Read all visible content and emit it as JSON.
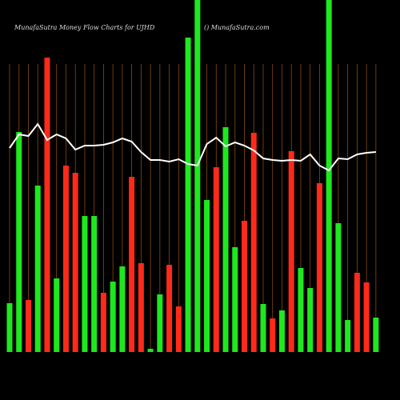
{
  "chart_data": {
    "type": "bar",
    "title": "MunafaSutra  Money Flow  Charts for UJHD",
    "subtitle": "() MunafaSutra.com",
    "ylim": [
      0,
      440
    ],
    "grid": true,
    "grid_color": "#8a4a10",
    "categories": [
      null,
      null,
      null,
      null,
      null,
      null,
      null,
      null,
      null,
      null,
      null,
      null,
      null,
      null,
      null,
      null,
      null,
      null,
      null,
      null,
      null,
      null,
      null,
      null,
      null,
      null,
      null,
      null,
      null,
      null,
      null,
      null,
      null,
      null,
      null,
      null,
      null,
      null,
      null,
      null
    ],
    "series": [
      {
        "type": "bar",
        "values": [
          61,
          275,
          65,
          208,
          368,
          92,
          233,
          224,
          170,
          170,
          74,
          88,
          107,
          219,
          111,
          4,
          72,
          109,
          57,
          393,
          460,
          190,
          231,
          281,
          131,
          164,
          274,
          60,
          42,
          52,
          251,
          105,
          80,
          211,
          460,
          161,
          40,
          99,
          87,
          43
        ],
        "colors": [
          "#1ee81e",
          "#1ee81e",
          "#ff2a1a",
          "#1ee81e",
          "#ff2a1a",
          "#1ee81e",
          "#ff2a1a",
          "#ff2a1a",
          "#1ee81e",
          "#1ee81e",
          "#ff2a1a",
          "#1ee81e",
          "#1ee81e",
          "#ff2a1a",
          "#ff2a1a",
          "#1ee81e",
          "#1ee81e",
          "#ff2a1a",
          "#ff2a1a",
          "#1ee81e",
          "#1ee81e",
          "#1ee81e",
          "#ff2a1a",
          "#1ee81e",
          "#1ee81e",
          "#ff2a1a",
          "#ff2a1a",
          "#1ee81e",
          "#ff2a1a",
          "#1ee81e",
          "#ff2a1a",
          "#1ee81e",
          "#1ee81e",
          "#ff2a1a",
          "#1ee81e",
          "#1ee81e",
          "#1ee81e",
          "#ff2a1a",
          "#ff2a1a",
          "#1ee81e"
        ]
      },
      {
        "type": "line",
        "color": "#ffffff",
        "values": [
          255,
          272,
          270,
          285,
          265,
          272,
          267,
          253,
          258,
          258,
          259,
          262,
          267,
          263,
          250,
          240,
          240,
          238,
          241,
          235,
          233,
          260,
          268,
          257,
          262,
          258,
          252,
          242,
          240,
          239,
          240,
          239,
          247,
          233,
          227,
          242,
          241,
          247,
          249,
          250
        ]
      }
    ]
  }
}
